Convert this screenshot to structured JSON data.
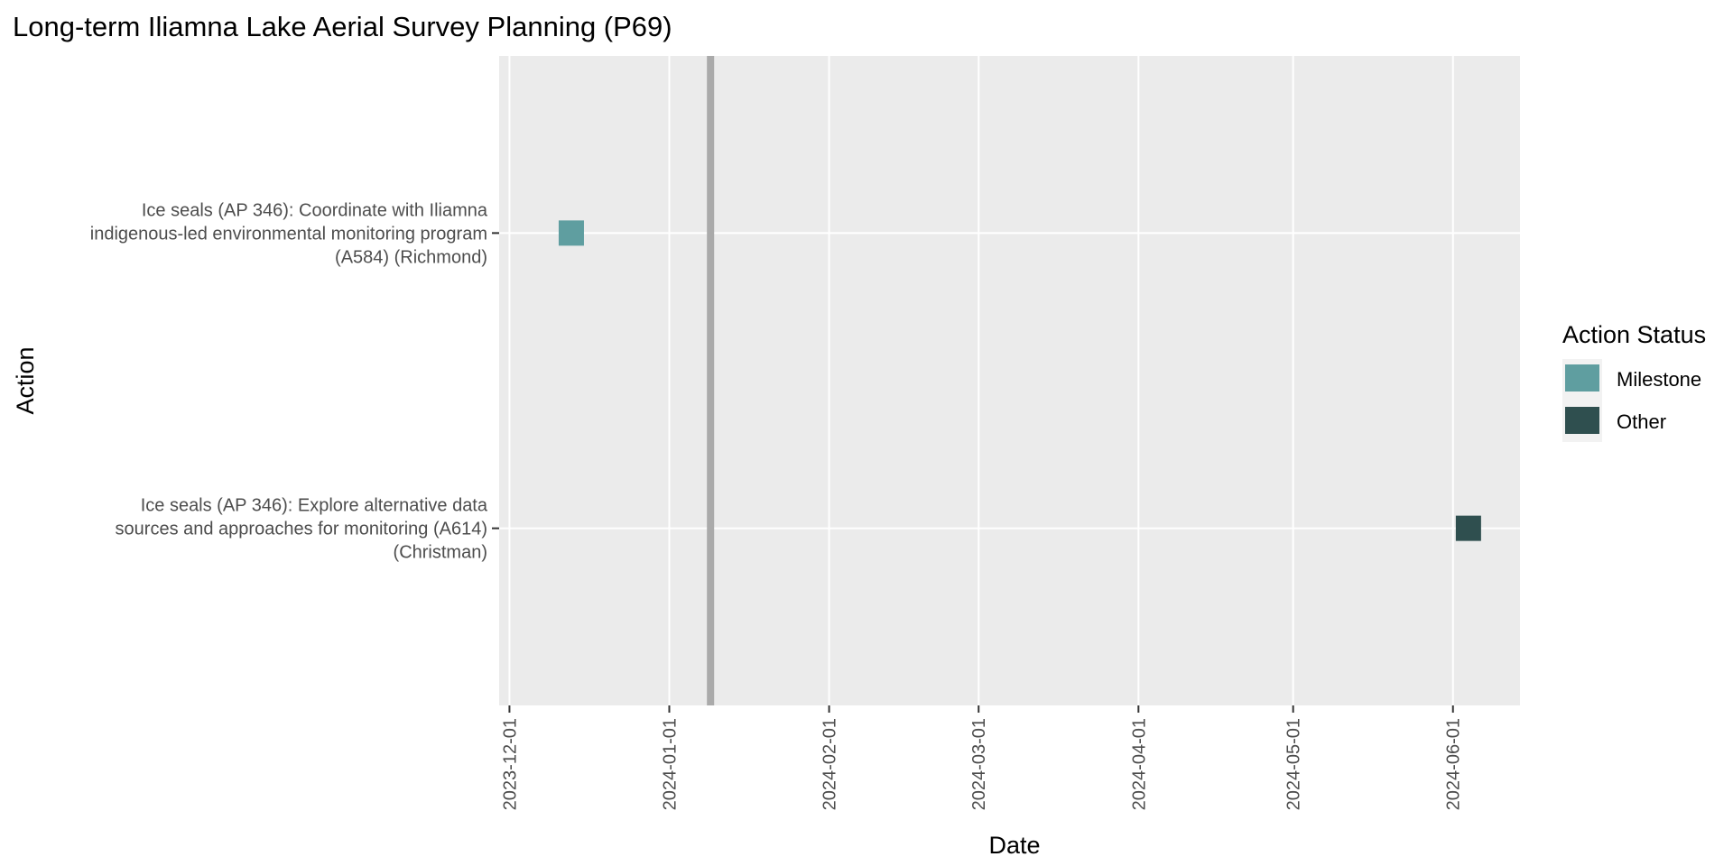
{
  "chart_data": {
    "type": "timeline",
    "title": "Long-term Iliamna Lake Aerial Survey Planning (P69)",
    "xlabel": "Date",
    "ylabel": "Action",
    "xlim": [
      "2023-11-29",
      "2024-06-14"
    ],
    "x_ticks": [
      "2023-12-01",
      "2024-01-01",
      "2024-02-01",
      "2024-03-01",
      "2024-04-01",
      "2024-05-01",
      "2024-06-01"
    ],
    "reference_line": {
      "date": "2024-01-09",
      "color": "#aaaaaa"
    },
    "categories": [
      {
        "lines": [
          "Ice seals (AP 346): Coordinate with Iliamna",
          "indigenous-led environmental monitoring program",
          "(A584) (Richmond)"
        ]
      },
      {
        "lines": [
          "Ice seals (AP 346): Explore alternative data",
          "sources and approaches for monitoring (A614)",
          "(Christman)"
        ]
      }
    ],
    "points": [
      {
        "category_index": 0,
        "date": "2023-12-13",
        "status": "Milestone"
      },
      {
        "category_index": 1,
        "date": "2024-06-04",
        "status": "Other"
      }
    ],
    "legend": {
      "title": "Action Status",
      "position": "right",
      "items": [
        {
          "label": "Milestone",
          "color": "#5f9ea0"
        },
        {
          "label": "Other",
          "color": "#2f4f4f"
        }
      ]
    },
    "grid": true,
    "panel_color": "#ebebeb",
    "grid_color": "#ffffff"
  }
}
